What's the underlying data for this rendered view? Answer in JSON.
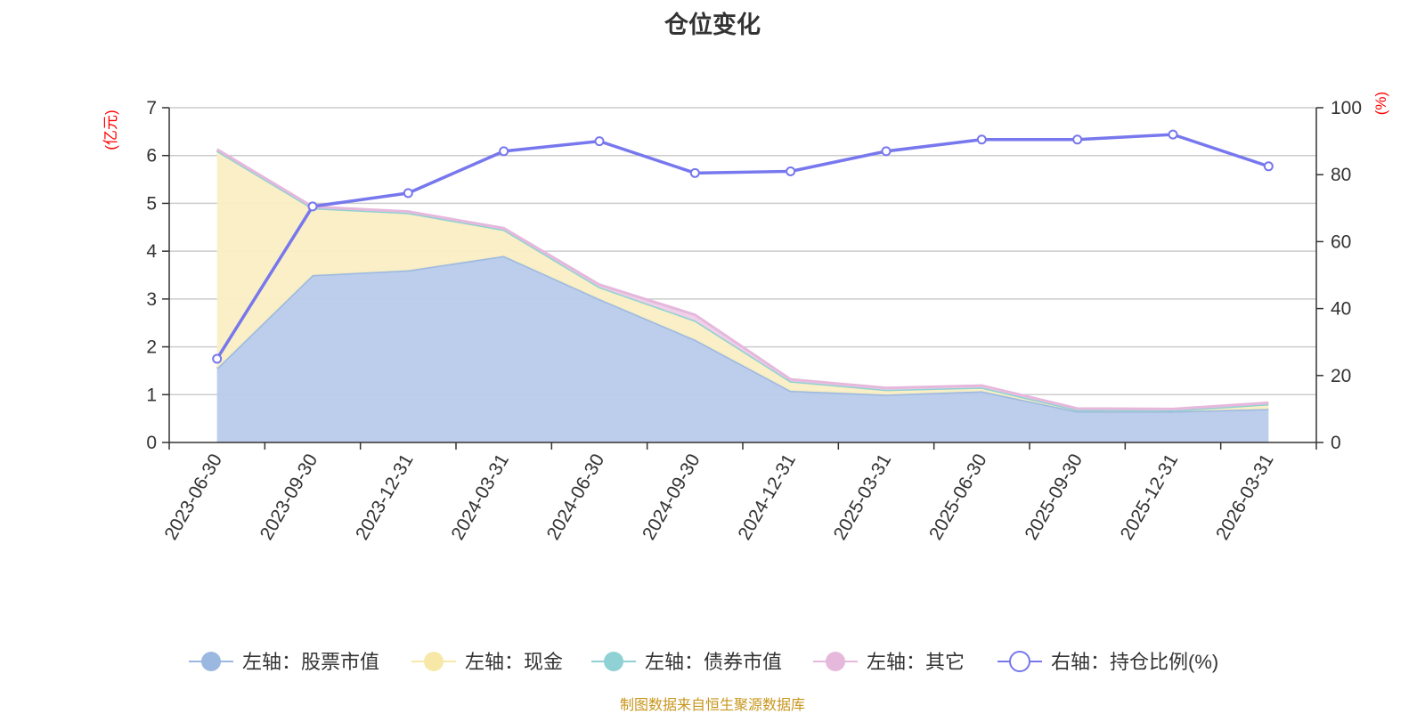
{
  "chart_title": "仓位变化",
  "source_note": "制图数据来自恒生聚源数据库",
  "chart_data": {
    "type": "area",
    "categories": [
      "2023-06-30",
      "2023-09-30",
      "2023-12-31",
      "2024-03-31",
      "2024-06-30",
      "2024-09-30",
      "2024-12-31",
      "2025-03-31",
      "2025-06-30",
      "2025-09-30",
      "2025-12-31",
      "2026-03-31"
    ],
    "left_axis": {
      "unit": "(亿元)",
      "ylim": [
        0,
        7
      ],
      "ticks": [
        0,
        1,
        2,
        3,
        4,
        5,
        6,
        7
      ],
      "unit_color": "#ff0000"
    },
    "right_axis": {
      "unit": "(%)",
      "ylim": [
        0,
        100
      ],
      "ticks": [
        0,
        20,
        40,
        60,
        80,
        100
      ],
      "unit_color": "#ff0000"
    },
    "grid": true,
    "legend_position": "bottom",
    "series": [
      {
        "name": "左轴：股票市值",
        "axis": "left",
        "stacked": true,
        "color": "#9bb8e0",
        "fill": "#b8cbea",
        "values": [
          1.55,
          3.5,
          3.6,
          3.9,
          3.0,
          2.15,
          1.08,
          1.0,
          1.07,
          0.65,
          0.65,
          0.7
        ]
      },
      {
        "name": "左轴：现金",
        "axis": "left",
        "stacked": true,
        "color": "#f7e8a8",
        "fill": "#faeec3",
        "values": [
          4.55,
          1.4,
          1.2,
          0.55,
          0.25,
          0.4,
          0.2,
          0.1,
          0.08,
          0.03,
          0.02,
          0.1
        ]
      },
      {
        "name": "左轴：债券市值",
        "axis": "left",
        "stacked": true,
        "color": "#8fd1d4",
        "fill": "#b6e3e5",
        "values": [
          0,
          0,
          0,
          0,
          0,
          0,
          0,
          0,
          0,
          0,
          0,
          0
        ]
      },
      {
        "name": "左轴：其它",
        "axis": "left",
        "stacked": true,
        "color": "#e6b8dc",
        "fill": "#efcfe8",
        "values": [
          0.03,
          0.03,
          0.03,
          0.03,
          0.05,
          0.12,
          0.04,
          0.04,
          0.04,
          0.03,
          0.03,
          0.03
        ]
      },
      {
        "name": "右轴：持仓比例(%)",
        "axis": "right",
        "type": "line",
        "color": "#7777ee",
        "values": [
          25,
          70.5,
          74.5,
          87,
          90,
          80.5,
          81,
          87,
          90.5,
          90.5,
          92,
          82.5
        ]
      }
    ]
  }
}
